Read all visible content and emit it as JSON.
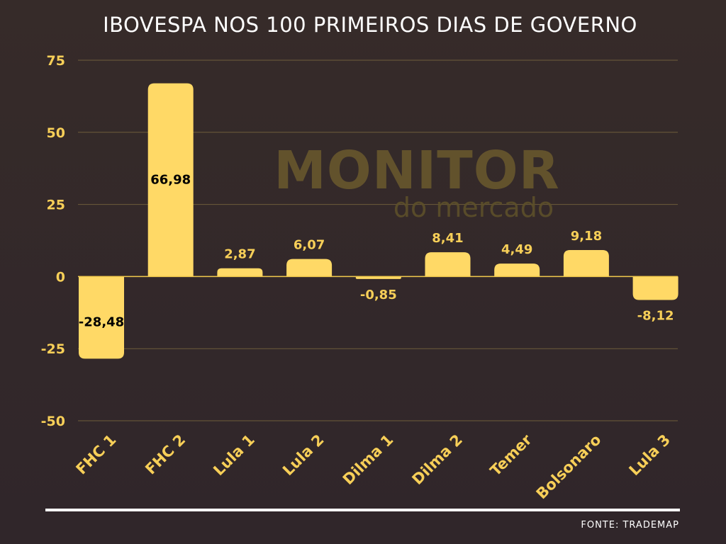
{
  "chart_data": {
    "type": "bar",
    "title": "IBOVESPA NOS 100 PRIMEIROS DIAS DE GOVERNO",
    "categories": [
      "FHC 1",
      "FHC 2",
      "Lula 1",
      "Lula 2",
      "Dilma 1",
      "Dilma 2",
      "Temer",
      "Bolsonaro",
      "Lula 3"
    ],
    "values": [
      -28.48,
      66.98,
      2.87,
      6.07,
      -0.85,
      8.41,
      4.49,
      9.18,
      -8.12
    ],
    "value_labels": [
      "-28,48",
      "66,98",
      "2,87",
      "6,07",
      "-0,85",
      "8,41",
      "4,49",
      "9,18",
      "-8,12"
    ],
    "yticks": [
      75,
      50,
      25,
      0,
      -25,
      -50
    ],
    "ytick_labels": [
      "75",
      "50",
      "25",
      "0",
      "-25",
      "-50"
    ],
    "ylim": [
      -50,
      75
    ],
    "xlabel": "",
    "ylabel": "",
    "grid": true,
    "legend": "none",
    "colors": {
      "bar": "#ffd966",
      "bar_edge": "#f2c94c",
      "axis_text": "#f7cf58",
      "grid": "#6e5d3a",
      "label_inside": "#000000",
      "label_outside": "#f7cf58"
    }
  },
  "watermark": {
    "main": "MONITOR",
    "sub": "do mercado"
  },
  "source": "FONTE: TRADEMAP"
}
